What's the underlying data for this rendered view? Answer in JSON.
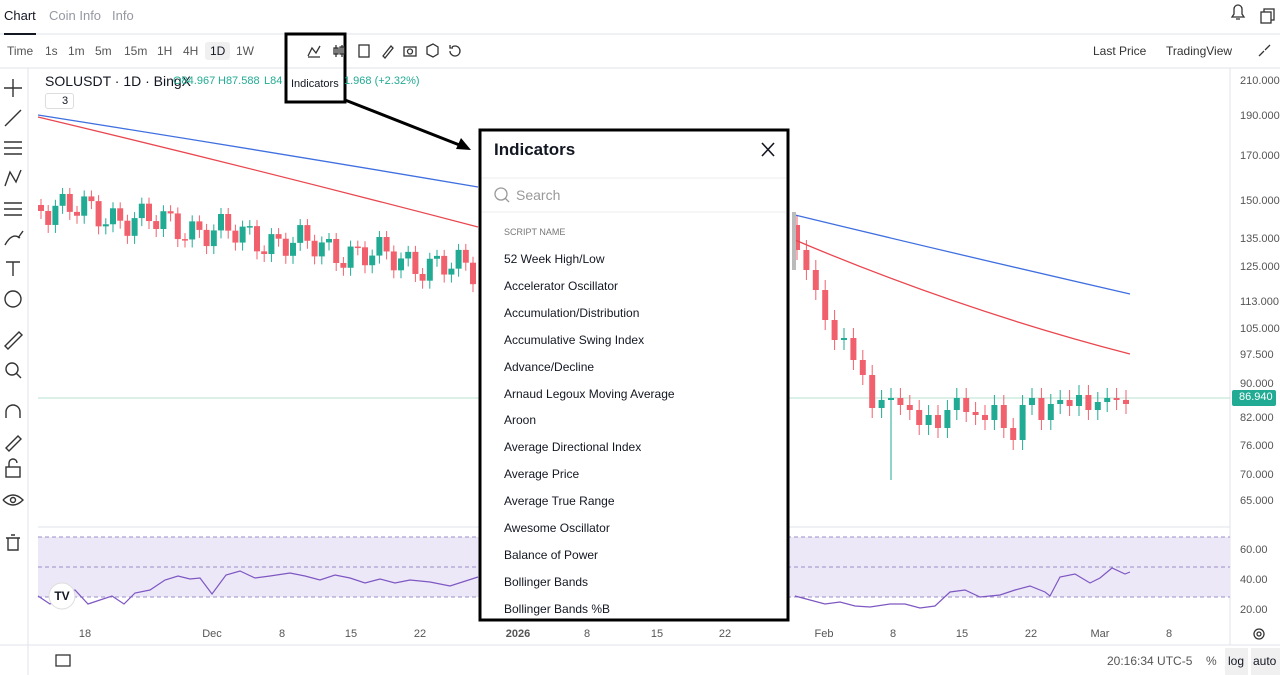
{
  "tabs": [
    "Chart",
    "Coin Info",
    "Info"
  ],
  "toolbar": {
    "intervals": [
      "Time",
      "1s",
      "1m",
      "5m",
      "15m",
      "1H",
      "4H",
      "1D",
      "1W"
    ],
    "price_type": "Last Price",
    "chart_style": "TradingView"
  },
  "tooltip": "Indicators",
  "legend": {
    "symbol": "SOLUSDT · 1D · BingX",
    "open": "O84.967",
    "high": "H87.588",
    "low": "L84",
    "change": "1.968 (+2.32%)",
    "collapse": "3"
  },
  "price_axis": [
    "210.000",
    "190.000",
    "170.000",
    "150.000",
    "135.000",
    "125.000",
    "113.000",
    "105.000",
    "97.500",
    "90.000",
    "82.000",
    "76.000",
    "70.000",
    "65.000"
  ],
  "last_price": "86.940",
  "rsi_axis": [
    "60.00",
    "40.00",
    "20.00"
  ],
  "time_axis": [
    "18",
    "Dec",
    "8",
    "15",
    "22",
    "2026",
    "8",
    "15",
    "22",
    "Feb",
    "8",
    "15",
    "22",
    "Mar",
    "8"
  ],
  "dialog": {
    "title": "Indicators",
    "search_placeholder": "Search",
    "section": "SCRIPT NAME",
    "items": [
      "52 Week High/Low",
      "Accelerator Oscillator",
      "Accumulation/Distribution",
      "Accumulative Swing Index",
      "Advance/Decline",
      "Arnaud Legoux Moving Average",
      "Aroon",
      "Average Directional Index",
      "Average Price",
      "Average True Range",
      "Awesome Oscillator",
      "Balance of Power",
      "Bollinger Bands",
      "Bollinger Bands %B"
    ]
  },
  "footer": {
    "time": "20:16:34 UTC-5",
    "percent": "%",
    "log": "log",
    "auto": "auto"
  }
}
